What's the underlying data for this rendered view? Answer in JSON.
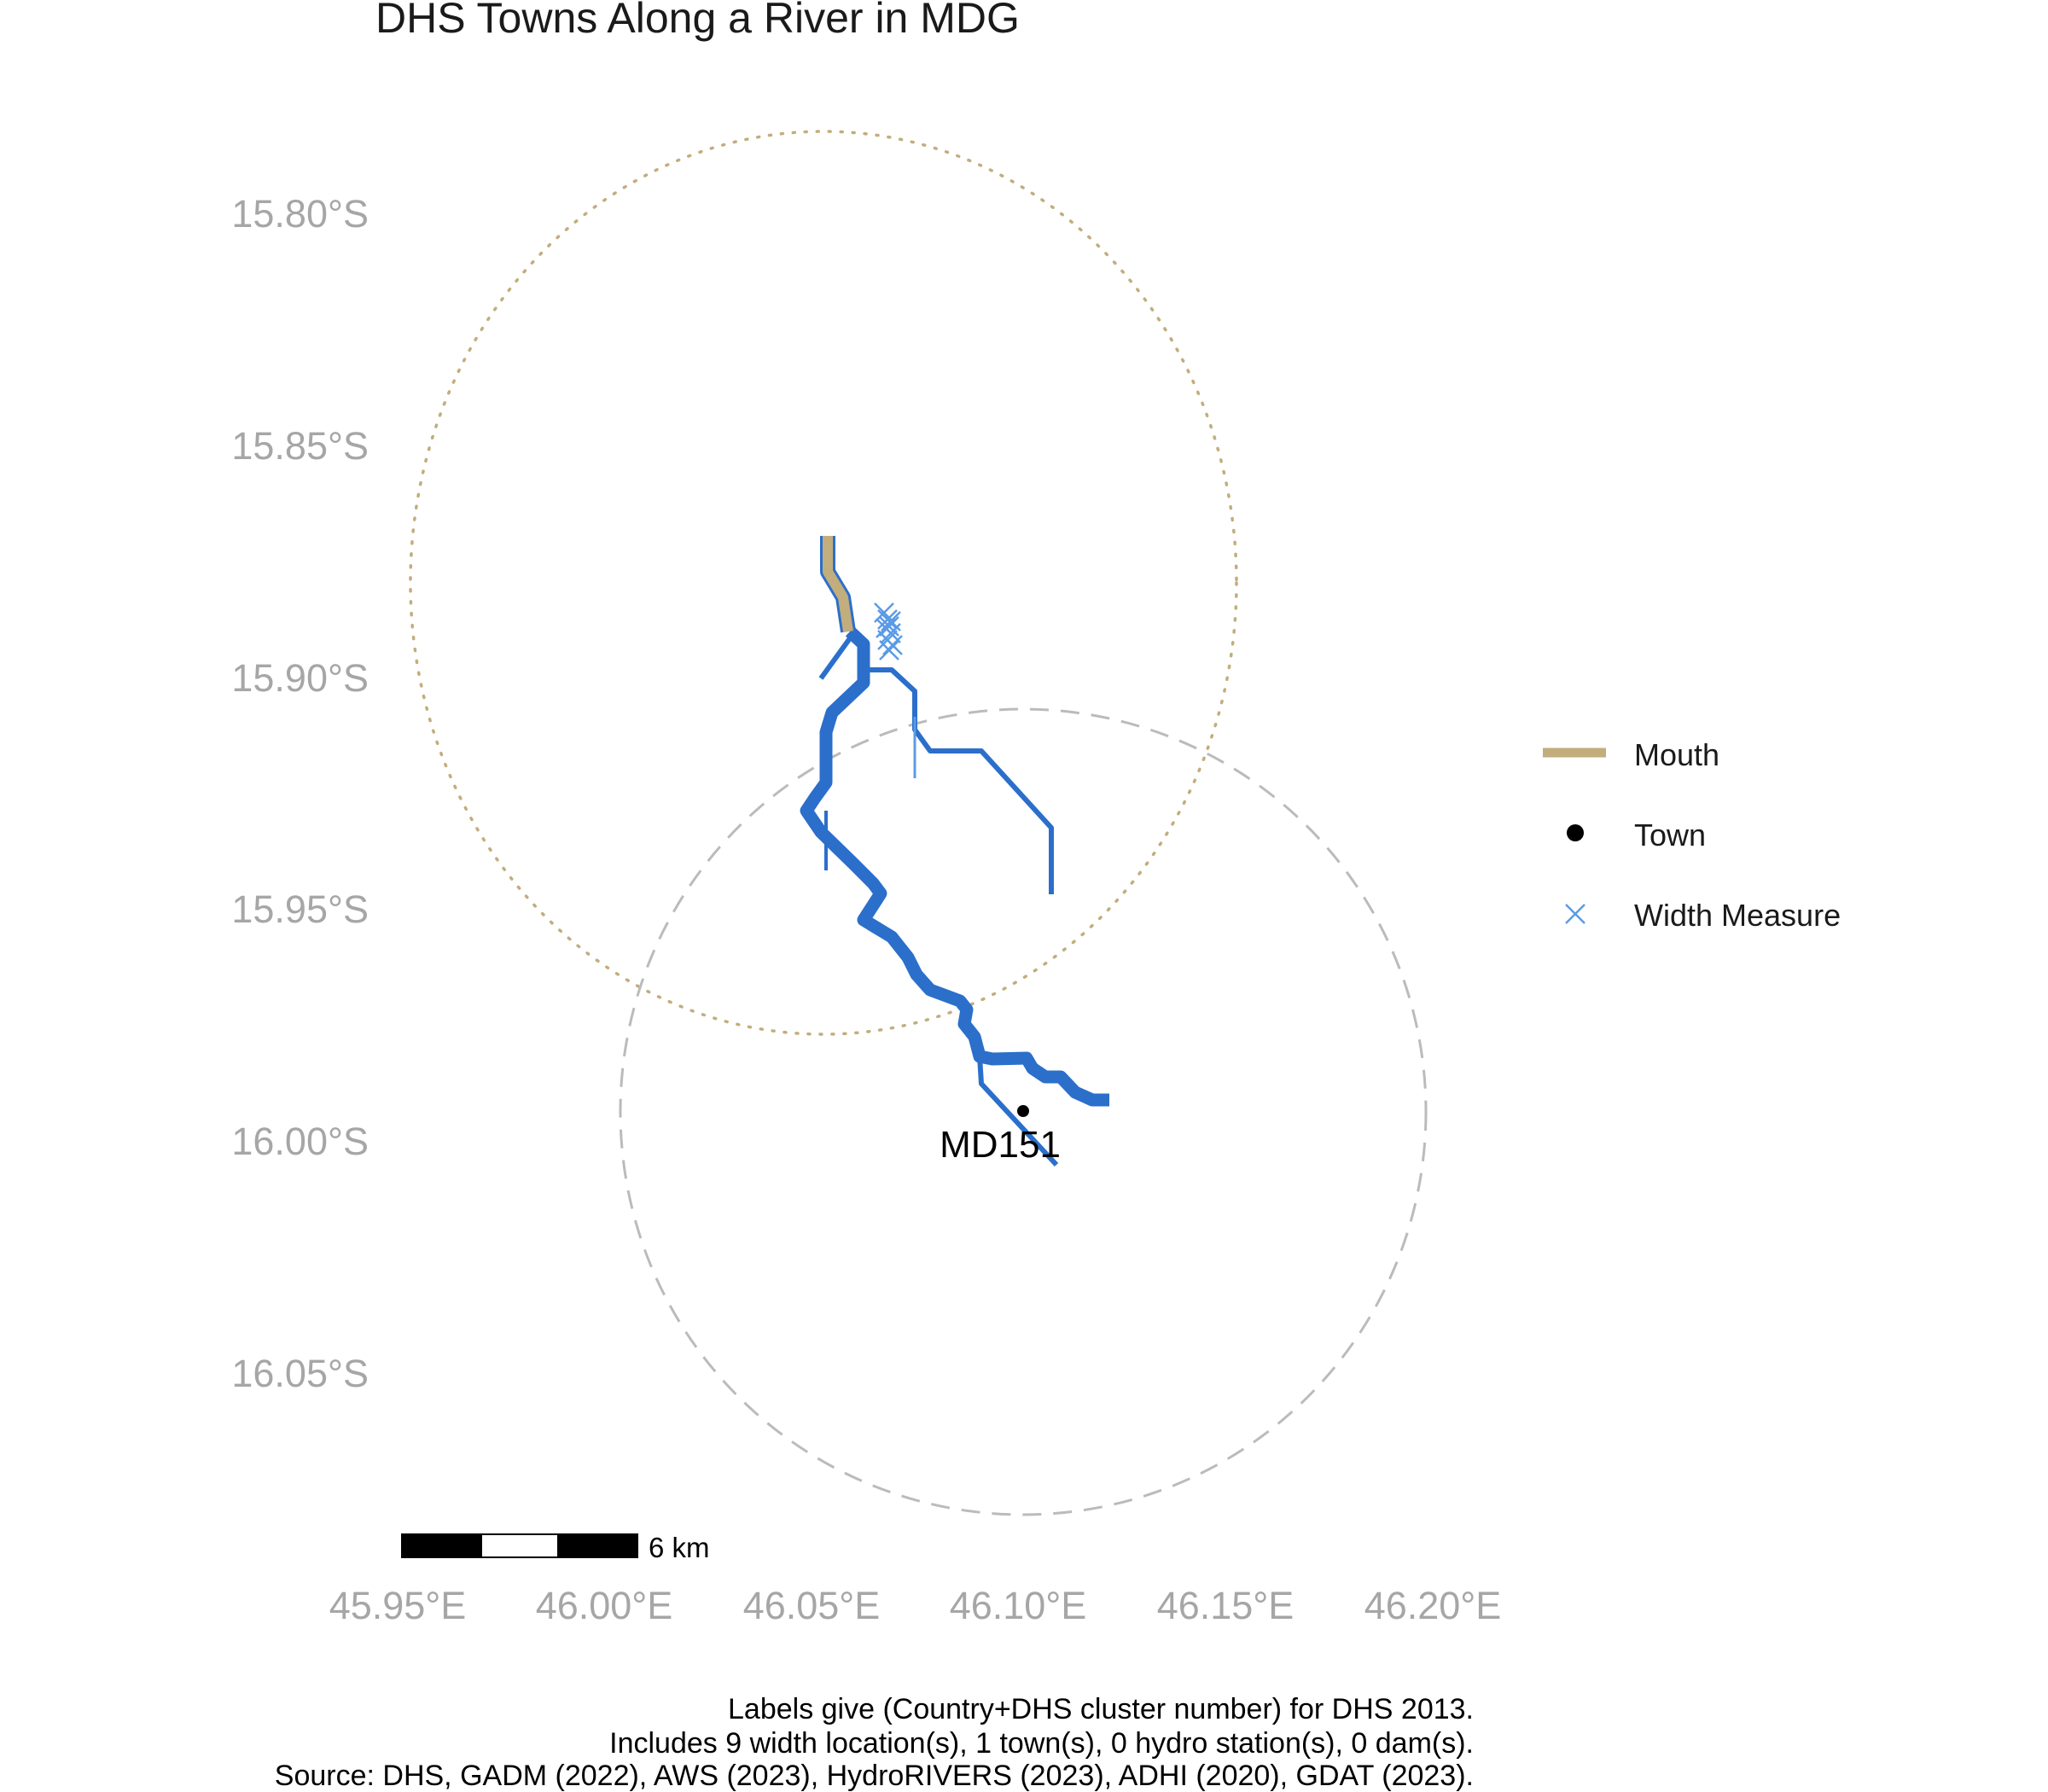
{
  "title": "DHS Towns Along a River in MDG",
  "axes": {
    "y_ticks": [
      "15.80°S",
      "15.85°S",
      "15.90°S",
      "15.95°S",
      "16.00°S",
      "16.05°S"
    ],
    "x_ticks": [
      "45.95°E",
      "46.00°E",
      "46.05°E",
      "46.10°E",
      "46.15°E",
      "46.20°E"
    ]
  },
  "legend": {
    "items": [
      {
        "label": "Mouth",
        "symbol": "line",
        "color": "#c2ad7d"
      },
      {
        "label": "Town",
        "symbol": "dot",
        "color": "#000000"
      },
      {
        "label": "Width Measure",
        "symbol": "x",
        "color": "#5b9be6"
      }
    ]
  },
  "towns": [
    {
      "label": "MD151",
      "lon": 46.101,
      "lat": -15.994
    }
  ],
  "scale_bar": {
    "label": "6 km"
  },
  "caption": {
    "line1": "Labels give (Country+DHS cluster number) for DHS 2013.",
    "line2": "Includes 9 width location(s), 1 town(s), 0 hydro station(s), 0 dam(s).",
    "line3": "Source: DHS, GADM (2022), AWS (2023), HydroRIVERS (2023), ADHI (2020), GDAT (2023)."
  },
  "colors": {
    "river": "#2b6fcb",
    "mouth": "#c2ad7d",
    "width_measure": "#5b9be6",
    "town": "#000000",
    "axis_text": "#a6a6a6",
    "buffer_circle": "#bbbbbb"
  }
}
